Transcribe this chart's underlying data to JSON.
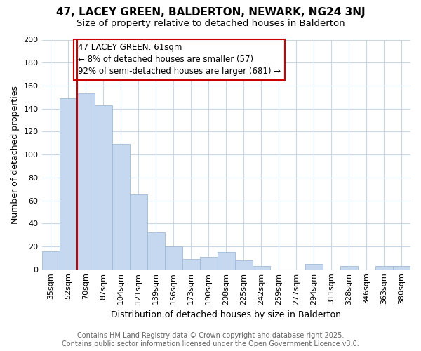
{
  "title": "47, LACEY GREEN, BALDERTON, NEWARK, NG24 3NJ",
  "subtitle": "Size of property relative to detached houses in Balderton",
  "xlabel": "Distribution of detached houses by size in Balderton",
  "ylabel": "Number of detached properties",
  "categories": [
    "35sqm",
    "52sqm",
    "70sqm",
    "87sqm",
    "104sqm",
    "121sqm",
    "139sqm",
    "156sqm",
    "173sqm",
    "190sqm",
    "208sqm",
    "225sqm",
    "242sqm",
    "259sqm",
    "277sqm",
    "294sqm",
    "311sqm",
    "328sqm",
    "346sqm",
    "363sqm",
    "380sqm"
  ],
  "values": [
    16,
    149,
    153,
    143,
    109,
    65,
    32,
    20,
    9,
    11,
    15,
    8,
    3,
    0,
    0,
    5,
    0,
    3,
    0,
    3,
    3
  ],
  "bar_color": "#c5d8f0",
  "bar_edge_color": "#a0bcd8",
  "background_color": "#ffffff",
  "plot_bg_color": "#ffffff",
  "grid_color": "#c8d8e8",
  "vline_color": "#cc0000",
  "vline_x": 1.5,
  "annotation_title": "47 LACEY GREEN: 61sqm",
  "annotation_line1": "← 8% of detached houses are smaller (57)",
  "annotation_line2": "92% of semi-detached houses are larger (681) →",
  "annotation_box_facecolor": "#ffffff",
  "annotation_box_edgecolor": "#cc0000",
  "ylim": [
    0,
    200
  ],
  "yticks": [
    0,
    20,
    40,
    60,
    80,
    100,
    120,
    140,
    160,
    180,
    200
  ],
  "title_fontsize": 11,
  "subtitle_fontsize": 9.5,
  "axis_label_fontsize": 9,
  "tick_fontsize": 8,
  "annotation_fontsize": 8.5,
  "footer_fontsize": 7,
  "footer_line1": "Contains HM Land Registry data © Crown copyright and database right 2025.",
  "footer_line2": "Contains public sector information licensed under the Open Government Licence v3.0."
}
